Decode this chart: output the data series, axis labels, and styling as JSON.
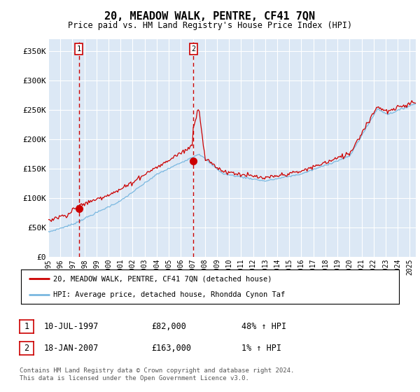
{
  "title": "20, MEADOW WALK, PENTRE, CF41 7QN",
  "subtitle": "Price paid vs. HM Land Registry's House Price Index (HPI)",
  "ylabel_ticks": [
    "£0",
    "£50K",
    "£100K",
    "£150K",
    "£200K",
    "£250K",
    "£300K",
    "£350K"
  ],
  "ytick_values": [
    0,
    50000,
    100000,
    150000,
    200000,
    250000,
    300000,
    350000
  ],
  "ylim": [
    0,
    370000
  ],
  "xlim_start": 1995.0,
  "xlim_end": 2025.5,
  "plot_bg": "#dce8f5",
  "grid_color": "#ffffff",
  "hpi_color": "#7ab8e0",
  "price_color": "#cc0000",
  "dashed_line_color": "#cc0000",
  "sale1_x": 1997.53,
  "sale1_y": 82000,
  "sale2_x": 2007.05,
  "sale2_y": 163000,
  "legend_line1": "20, MEADOW WALK, PENTRE, CF41 7QN (detached house)",
  "legend_line2": "HPI: Average price, detached house, Rhondda Cynon Taf",
  "table_row1": [
    "1",
    "10-JUL-1997",
    "£82,000",
    "48% ↑ HPI"
  ],
  "table_row2": [
    "2",
    "18-JAN-2007",
    "£163,000",
    "1% ↑ HPI"
  ],
  "footnote": "Contains HM Land Registry data © Crown copyright and database right 2024.\nThis data is licensed under the Open Government Licence v3.0.",
  "xtick_years": [
    1995,
    1996,
    1997,
    1998,
    1999,
    2000,
    2001,
    2002,
    2003,
    2004,
    2005,
    2006,
    2007,
    2008,
    2009,
    2010,
    2011,
    2012,
    2013,
    2014,
    2015,
    2016,
    2017,
    2018,
    2019,
    2020,
    2021,
    2022,
    2023,
    2024,
    2025
  ]
}
